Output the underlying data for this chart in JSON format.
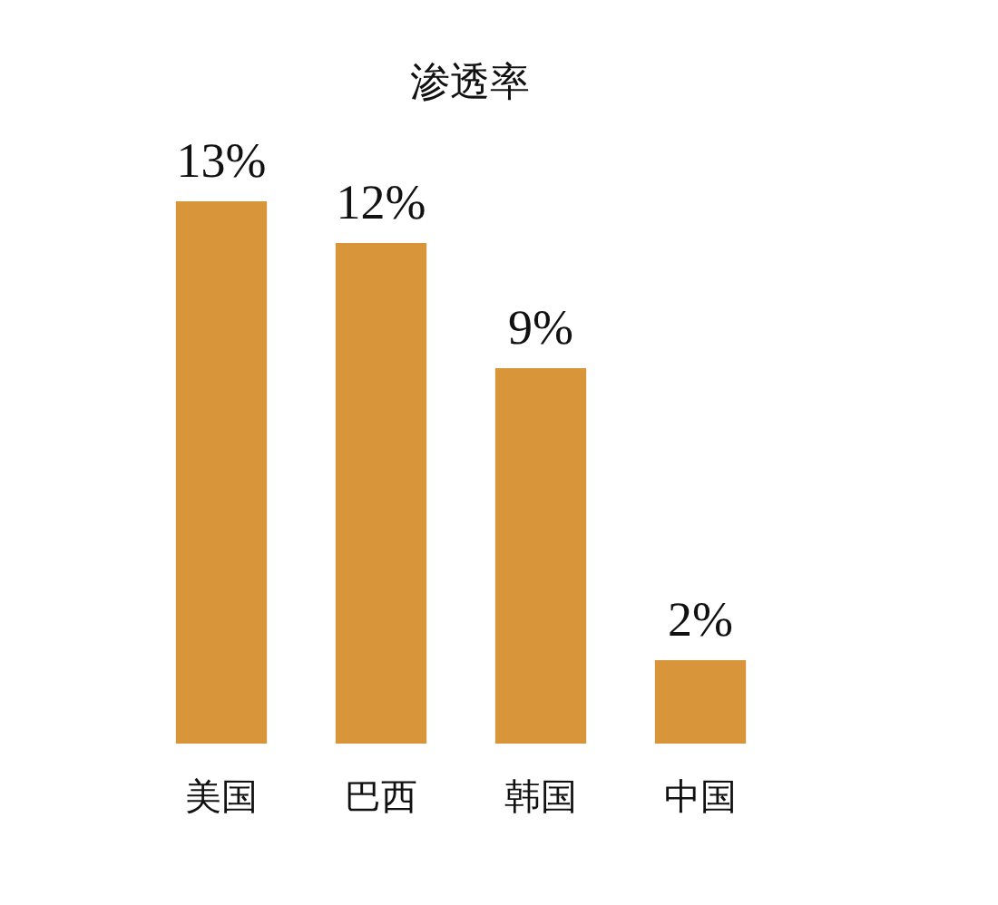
{
  "chart_data": {
    "type": "bar",
    "title": "渗透率",
    "categories": [
      "美国",
      "巴西",
      "韩国",
      "中国"
    ],
    "values": [
      13,
      12,
      9,
      2
    ],
    "value_labels": [
      "13%",
      "12%",
      "9%",
      "2%"
    ],
    "color": "#d8953a"
  }
}
